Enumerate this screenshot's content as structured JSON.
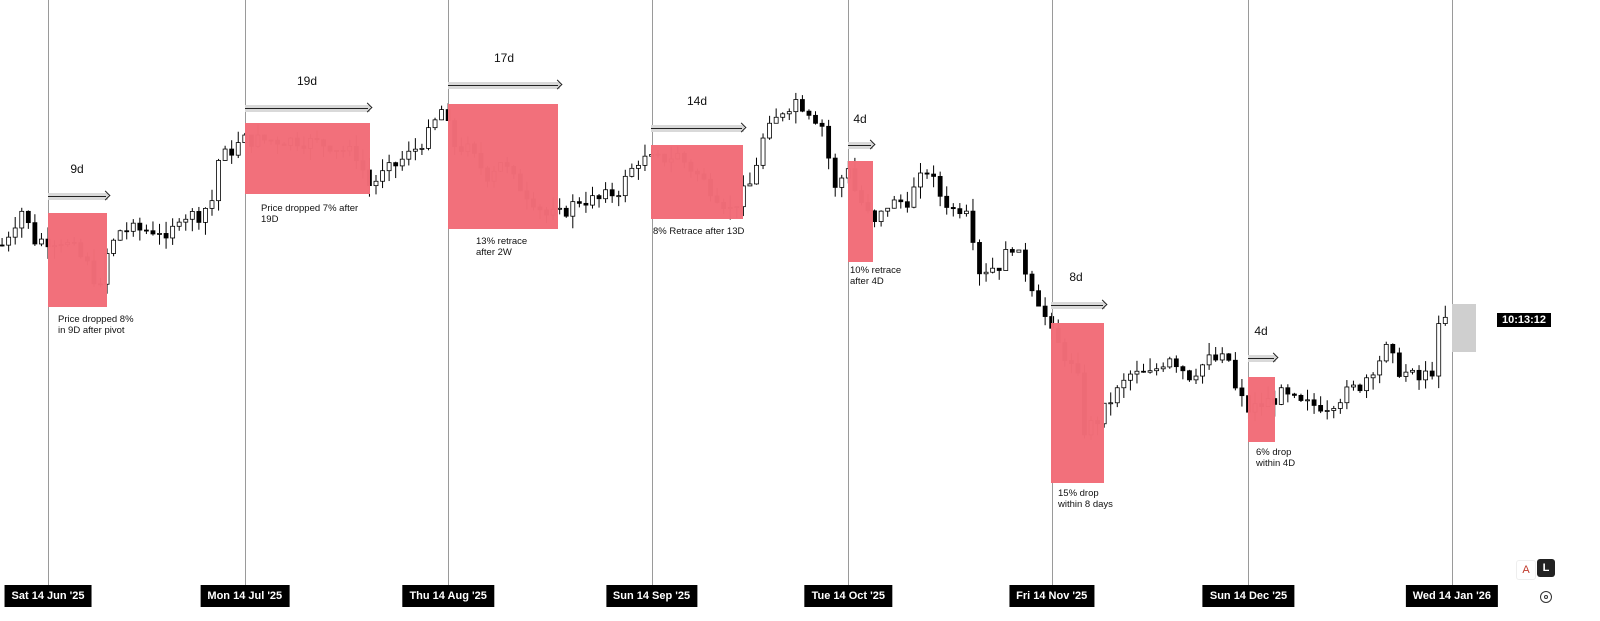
{
  "chart_data": {
    "type": "candlestick",
    "title": "",
    "x_axis": {
      "tick_labels": [
        "Sat 14 Jun '25",
        "Mon 14 Jul '25",
        "Thu 14 Aug '25",
        "Sun 14 Sep '25",
        "Tue 14 Oct '25",
        "Fri 14 Nov '25",
        "Sun 14 Dec '25",
        "Wed 14 Jan '26"
      ],
      "tick_days": [
        0,
        30,
        61,
        92,
        122,
        153,
        183,
        214
      ]
    },
    "y_axis": {
      "visible": false,
      "range": [
        0,
        120
      ]
    },
    "grid": false,
    "price_path": [
      [
        -7,
        71
      ],
      [
        -4,
        78
      ],
      [
        -2,
        72
      ],
      [
        0,
        72
      ],
      [
        2,
        72
      ],
      [
        4,
        70
      ],
      [
        6,
        67
      ],
      [
        8,
        62
      ],
      [
        9,
        69
      ],
      [
        11,
        74
      ],
      [
        14,
        74
      ],
      [
        17,
        74
      ],
      [
        18,
        71
      ],
      [
        20,
        77
      ],
      [
        23,
        77
      ],
      [
        25,
        80
      ],
      [
        26,
        88
      ],
      [
        28,
        90
      ],
      [
        30,
        92
      ],
      [
        32,
        92
      ],
      [
        38,
        92
      ],
      [
        43,
        91
      ],
      [
        47,
        89
      ],
      [
        49,
        83
      ],
      [
        52,
        86
      ],
      [
        55,
        89
      ],
      [
        58,
        93
      ],
      [
        60,
        98
      ],
      [
        62,
        91
      ],
      [
        64,
        90
      ],
      [
        67,
        85
      ],
      [
        69,
        88
      ],
      [
        71,
        84
      ],
      [
        74,
        80
      ],
      [
        76,
        77
      ],
      [
        78,
        77
      ],
      [
        81,
        80
      ],
      [
        84,
        80
      ],
      [
        87,
        82
      ],
      [
        90,
        88
      ],
      [
        93,
        88
      ],
      [
        96,
        89
      ],
      [
        99,
        85
      ],
      [
        102,
        81
      ],
      [
        104,
        78
      ],
      [
        107,
        83
      ],
      [
        109,
        92
      ],
      [
        112,
        98
      ],
      [
        114,
        100
      ],
      [
        116,
        98
      ],
      [
        118,
        95
      ],
      [
        120,
        82
      ],
      [
        122,
        87
      ],
      [
        123,
        82
      ],
      [
        125,
        77
      ],
      [
        126,
        75
      ],
      [
        128,
        79
      ],
      [
        131,
        80
      ],
      [
        134,
        86
      ],
      [
        136,
        81
      ],
      [
        138,
        78
      ],
      [
        140,
        79
      ],
      [
        141,
        73
      ],
      [
        142,
        66
      ],
      [
        145,
        67
      ],
      [
        147,
        71
      ],
      [
        149,
        66
      ],
      [
        151,
        60
      ],
      [
        153,
        53
      ],
      [
        155,
        49
      ],
      [
        157,
        44
      ],
      [
        158,
        34
      ],
      [
        160,
        36
      ],
      [
        162,
        40
      ],
      [
        165,
        45
      ],
      [
        168,
        45
      ],
      [
        171,
        49
      ],
      [
        174,
        45
      ],
      [
        177,
        48
      ],
      [
        180,
        48
      ],
      [
        181,
        42
      ],
      [
        183,
        38
      ],
      [
        185,
        39
      ],
      [
        188,
        41
      ],
      [
        191,
        39
      ],
      [
        195,
        39
      ],
      [
        200,
        43
      ],
      [
        204,
        50
      ],
      [
        206,
        46
      ],
      [
        209,
        44
      ],
      [
        211,
        46
      ],
      [
        212,
        54
      ],
      [
        213,
        56
      ]
    ],
    "current_time": "10:13:12",
    "annotations": {
      "durations": [
        "9d",
        "19d",
        "17d",
        "14d",
        "4d",
        "8d",
        "4d"
      ],
      "notes": [
        "Price dropped 8%\nin 9D after pivot",
        "Price dropped 7% after\n19D",
        "13% retrace\nafter 2W",
        "8% Retrace after 13D",
        "10% retrace\nafter 4D",
        "15% drop\nwithin 8 days",
        "6% drop\nwithin 4D"
      ]
    },
    "colors": {
      "up": "#ffffff",
      "down": "#000000",
      "outline": "#000000",
      "zone": "#f26d78",
      "duration_bar": "#d9d9d9"
    }
  },
  "controls": {
    "auto_label": "A",
    "log_label": "L"
  }
}
